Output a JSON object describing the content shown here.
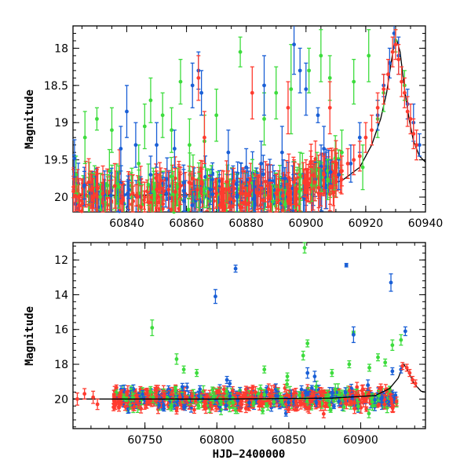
{
  "chart_data": [
    {
      "id": "top",
      "type": "scatter",
      "title": "",
      "xlabel": "",
      "ylabel": "Magnitude",
      "xlim": [
        60822,
        60940
      ],
      "ylim": [
        20.2,
        17.7
      ],
      "y_inverted": true,
      "xticks": [
        60840,
        60860,
        60880,
        60900,
        60920,
        60940
      ],
      "yticks": [
        18,
        18.5,
        19,
        19.5,
        20
      ],
      "xtick_labels": [
        "60840",
        "60860",
        "60880",
        "60900",
        "60920",
        "60940"
      ],
      "ytick_labels": [
        "18",
        "18.5",
        "19",
        "19.5",
        "20"
      ],
      "series_colors": {
        "red": "#ff3b2f",
        "blue": "#1a5fd6",
        "green": "#3ddc3d"
      },
      "model_curve": {
        "color": "#000000",
        "points": [
          [
            60822,
            19.98
          ],
          [
            60860,
            19.97
          ],
          [
            60890,
            19.92
          ],
          [
            60905,
            19.86
          ],
          [
            60912,
            19.78
          ],
          [
            60918,
            19.6
          ],
          [
            60922,
            19.3
          ],
          [
            60925,
            18.95
          ],
          [
            60927,
            18.6
          ],
          [
            60928.5,
            18.2
          ],
          [
            60929.5,
            17.95
          ],
          [
            60930.5,
            17.9
          ],
          [
            60931.5,
            18.05
          ],
          [
            60933,
            18.55
          ],
          [
            60934.5,
            18.95
          ],
          [
            60936,
            19.25
          ],
          [
            60938,
            19.45
          ],
          [
            60940,
            19.53
          ]
        ]
      },
      "points": {
        "blue": [
          [
            60822.5,
            19.48,
            0.25
          ],
          [
            60838,
            19.35,
            0.3
          ],
          [
            60840,
            18.85,
            0.35
          ],
          [
            60843,
            19.3,
            0.3
          ],
          [
            60848,
            19.7,
            0.25
          ],
          [
            60850,
            19.3,
            0.3
          ],
          [
            60856,
            19.35,
            0.25
          ],
          [
            60862,
            18.5,
            0.3
          ],
          [
            60864,
            18.3,
            0.25
          ],
          [
            60865,
            18.6,
            0.3
          ],
          [
            60868,
            19.9,
            0.2
          ],
          [
            60874,
            19.4,
            0.3
          ],
          [
            60880,
            19.6,
            0.25
          ],
          [
            60885,
            19.55,
            0.3
          ],
          [
            60886,
            18.5,
            0.4
          ],
          [
            60892,
            19.4,
            0.35
          ],
          [
            60896,
            17.95,
            0.4
          ],
          [
            60898,
            18.3,
            0.3
          ],
          [
            60900,
            18.55,
            0.35
          ],
          [
            60904,
            18.9,
            0.1
          ],
          [
            60906,
            19.35,
            0.3
          ],
          [
            60911,
            19.7,
            0.2
          ],
          [
            60915,
            19.55,
            0.25
          ],
          [
            60918,
            19.2,
            0.2
          ],
          [
            60924,
            18.9,
            0.2
          ],
          [
            60926,
            18.5,
            0.15
          ],
          [
            60928,
            18.2,
            0.2
          ],
          [
            60929.5,
            17.8,
            0.2
          ],
          [
            60931,
            18.1,
            0.25
          ],
          [
            60934,
            18.75,
            0.2
          ],
          [
            60936,
            19.0,
            0.25
          ],
          [
            60938,
            19.3,
            0.15
          ]
        ],
        "green": [
          [
            60823,
            19.7,
            0.25
          ],
          [
            60826,
            19.2,
            0.35
          ],
          [
            60830,
            18.95,
            0.15
          ],
          [
            60835,
            19.1,
            0.3
          ],
          [
            60844,
            19.55,
            0.25
          ],
          [
            60846,
            19.05,
            0.3
          ],
          [
            60848,
            18.7,
            0.3
          ],
          [
            60852,
            18.9,
            0.3
          ],
          [
            60855,
            19.1,
            0.3
          ],
          [
            60858,
            18.45,
            0.3
          ],
          [
            60861,
            19.3,
            0.35
          ],
          [
            60866,
            19.25,
            0.35
          ],
          [
            60870,
            18.9,
            0.35
          ],
          [
            60878,
            18.05,
            0.2
          ],
          [
            60886,
            18.95,
            0.35
          ],
          [
            60890,
            18.6,
            0.35
          ],
          [
            60893,
            20.1,
            0.2
          ],
          [
            60895,
            18.55,
            0.6
          ],
          [
            60898,
            19.7,
            0.3
          ],
          [
            60901,
            18.3,
            0.3
          ],
          [
            60903,
            19.85,
            0.2
          ],
          [
            60905,
            18.1,
            0.35
          ],
          [
            60908,
            18.4,
            0.3
          ],
          [
            60912,
            19.4,
            0.3
          ],
          [
            60916,
            18.45,
            0.3
          ],
          [
            60919,
            19.6,
            0.3
          ],
          [
            60921,
            18.1,
            0.35
          ],
          [
            60924,
            18.95,
            0.25
          ],
          [
            60926,
            18.6,
            0.25
          ],
          [
            60930,
            17.9,
            0.15
          ],
          [
            60933,
            18.5,
            0.2
          ]
        ],
        "red": [
          [
            60824,
            20.0,
            0.25
          ],
          [
            60828,
            19.9,
            0.25
          ],
          [
            60832,
            19.95,
            0.25
          ],
          [
            60836,
            19.85,
            0.3
          ],
          [
            60842,
            19.95,
            0.25
          ],
          [
            60846,
            20.0,
            0.2
          ],
          [
            60850,
            19.9,
            0.25
          ],
          [
            60854,
            19.9,
            0.25
          ],
          [
            60858,
            19.85,
            0.25
          ],
          [
            60864,
            18.4,
            0.3
          ],
          [
            60866,
            19.2,
            0.35
          ],
          [
            60870,
            19.95,
            0.2
          ],
          [
            60874,
            19.9,
            0.25
          ],
          [
            60878,
            19.95,
            0.2
          ],
          [
            60882,
            18.6,
            0.35
          ],
          [
            60884,
            19.95,
            0.25
          ],
          [
            60888,
            20.0,
            0.2
          ],
          [
            60890,
            19.95,
            0.25
          ],
          [
            60894,
            18.8,
            0.35
          ],
          [
            60896,
            19.8,
            0.3
          ],
          [
            60900,
            19.75,
            0.25
          ],
          [
            60903,
            19.8,
            0.25
          ],
          [
            60906,
            19.7,
            0.25
          ],
          [
            60908,
            18.8,
            0.35
          ],
          [
            60910,
            19.6,
            0.25
          ],
          [
            60912,
            19.65,
            0.2
          ],
          [
            60914,
            19.55,
            0.2
          ],
          [
            60916,
            19.5,
            0.2
          ],
          [
            60918,
            19.45,
            0.2
          ],
          [
            60920,
            19.2,
            0.2
          ],
          [
            60922,
            19.1,
            0.2
          ],
          [
            60924,
            18.8,
            0.2
          ],
          [
            60926,
            18.55,
            0.2
          ],
          [
            60927.5,
            18.35,
            0.2
          ],
          [
            60929,
            18.05,
            0.2
          ],
          [
            60930,
            17.95,
            0.2
          ],
          [
            60931,
            18.15,
            0.2
          ],
          [
            60932,
            18.45,
            0.2
          ],
          [
            60933,
            18.6,
            0.2
          ],
          [
            60934,
            18.85,
            0.2
          ],
          [
            60935,
            18.95,
            0.2
          ],
          [
            60936,
            19.15,
            0.2
          ],
          [
            60937,
            19.3,
            0.2
          ]
        ]
      }
    },
    {
      "id": "bottom",
      "type": "scatter",
      "title": "",
      "xlabel": "HJD−2400000",
      "ylabel": "Magnitude",
      "xlim": [
        60700,
        60945
      ],
      "ylim": [
        21.7,
        11.0
      ],
      "y_inverted": true,
      "xticks": [
        60750,
        60800,
        60850,
        60900
      ],
      "yticks": [
        12,
        14,
        16,
        18,
        20
      ],
      "xtick_labels": [
        "60750",
        "60800",
        "60850",
        "60900"
      ],
      "ytick_labels": [
        "12",
        "14",
        "16",
        "18",
        "20"
      ],
      "series_colors": {
        "red": "#ff3b2f",
        "blue": "#1a5fd6",
        "green": "#3ddc3d"
      },
      "model_curve": {
        "color": "#000000",
        "points": [
          [
            60700,
            20.0
          ],
          [
            60800,
            20.0
          ],
          [
            60880,
            19.95
          ],
          [
            60910,
            19.8
          ],
          [
            60920,
            19.4
          ],
          [
            60926,
            18.8
          ],
          [
            60930,
            18.0
          ],
          [
            60933,
            18.4
          ],
          [
            60937,
            19.1
          ],
          [
            60942,
            19.55
          ],
          [
            60945,
            19.6
          ]
        ]
      },
      "points": {
        "blue": [
          [
            60799,
            14.1,
            0.4
          ],
          [
            60813,
            12.5,
            0.2
          ],
          [
            60890,
            12.3,
            0.1
          ],
          [
            60895,
            16.3,
            0.45
          ],
          [
            60921,
            13.3,
            0.5
          ],
          [
            60931,
            16.1,
            0.25
          ],
          [
            60776,
            19.3,
            0.2
          ],
          [
            60807,
            18.9,
            0.2
          ],
          [
            60863,
            18.5,
            0.3
          ],
          [
            60868,
            18.7,
            0.3
          ],
          [
            60905,
            19.2,
            0.3
          ],
          [
            60922,
            18.4,
            0.2
          ],
          [
            60928,
            18.3,
            0.2
          ]
        ],
        "green": [
          [
            60755,
            15.9,
            0.45
          ],
          [
            60861,
            11.3,
            0.3
          ],
          [
            60895,
            16.2,
            0.1
          ],
          [
            60922,
            16.9,
            0.3
          ],
          [
            60928,
            16.6,
            0.3
          ],
          [
            60863,
            16.8,
            0.2
          ],
          [
            60860,
            17.5,
            0.25
          ],
          [
            60772,
            17.7,
            0.3
          ],
          [
            60777,
            18.3,
            0.2
          ],
          [
            60786,
            18.5,
            0.2
          ],
          [
            60833,
            18.3,
            0.2
          ],
          [
            60849,
            18.7,
            0.2
          ],
          [
            60880,
            18.5,
            0.2
          ],
          [
            60892,
            18.0,
            0.2
          ],
          [
            60906,
            18.2,
            0.2
          ],
          [
            60912,
            17.6,
            0.2
          ],
          [
            60917,
            17.9,
            0.2
          ]
        ],
        "red": [
          [
            60703,
            20.0,
            0.35
          ],
          [
            60708,
            19.7,
            0.3
          ],
          [
            60714,
            19.9,
            0.35
          ],
          [
            60717,
            20.3,
            0.3
          ],
          [
            60929,
            18.1,
            0.2
          ],
          [
            60932,
            18.2,
            0.2
          ],
          [
            60934,
            18.5,
            0.2
          ],
          [
            60936,
            18.9,
            0.2
          ],
          [
            60938,
            19.1,
            0.2
          ]
        ]
      },
      "dense_band": {
        "x_start": 60728,
        "x_end": 60925,
        "center_mag": 20.0,
        "scatter_mag": 0.6
      }
    }
  ]
}
